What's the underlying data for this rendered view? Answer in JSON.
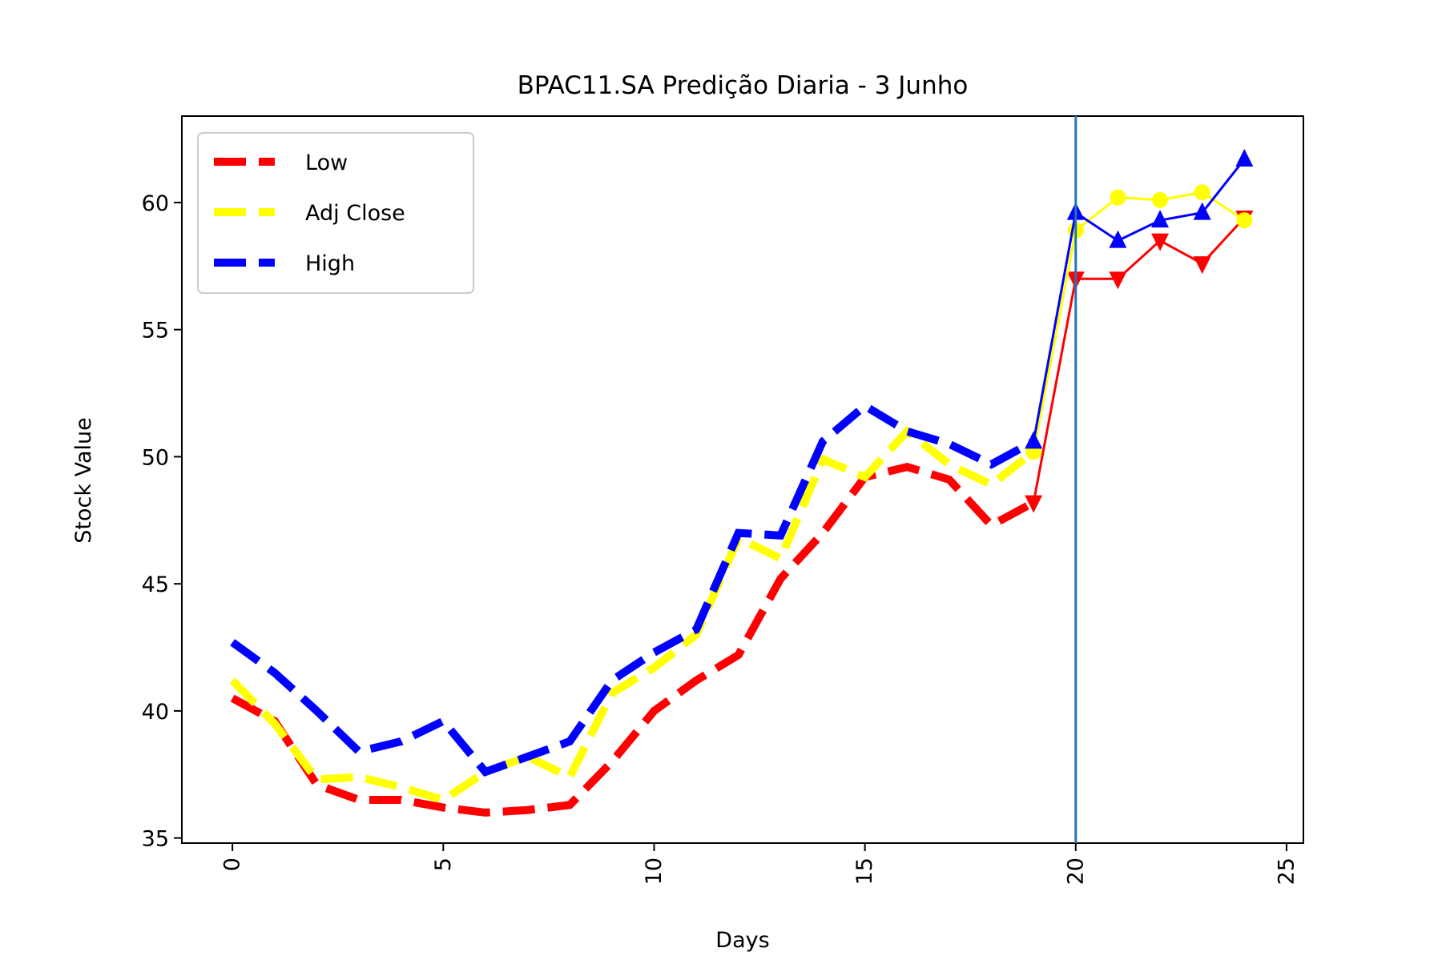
{
  "chart_data": {
    "type": "line",
    "title": "BPAC11.SA Predição Diaria - 3 Junho",
    "xlabel": "Days",
    "ylabel": "Stock Value",
    "xlim": [
      -1.2,
      25.4
    ],
    "ylim": [
      34.8,
      63.4
    ],
    "xticks": [
      0,
      5,
      10,
      15,
      20,
      25
    ],
    "yticks": [
      35,
      40,
      45,
      50,
      55,
      60
    ],
    "vline_x": 20,
    "vline_color": "#1f77b4",
    "legend_position": "upper-left",
    "grid": false,
    "series": [
      {
        "name": "Low",
        "color": "#ff0000",
        "x": [
          0,
          1,
          2,
          3,
          4,
          5,
          6,
          7,
          8,
          9,
          10,
          11,
          12,
          13,
          14,
          15,
          16,
          17,
          18,
          19
        ],
        "values": [
          40.5,
          39.6,
          37.1,
          36.5,
          36.5,
          36.2,
          36.0,
          36.1,
          36.3,
          38.0,
          40.0,
          41.2,
          42.2,
          45.2,
          47.0,
          49.2,
          49.6,
          49.1,
          47.3,
          48.2
        ],
        "pred_x": [
          19,
          20,
          21,
          22,
          23,
          24
        ],
        "pred_values": [
          48.2,
          57.0,
          57.0,
          58.5,
          57.6,
          59.4
        ],
        "marker": "triangle-down"
      },
      {
        "name": "Adj Close",
        "color": "#ffff00",
        "x": [
          0,
          1,
          2,
          3,
          4,
          5,
          6,
          7,
          8,
          9,
          10,
          11,
          12,
          13,
          14,
          15,
          16,
          17,
          18,
          19
        ],
        "values": [
          41.2,
          39.5,
          37.3,
          37.4,
          37.0,
          36.5,
          37.6,
          38.2,
          37.4,
          40.7,
          41.7,
          43.0,
          46.8,
          46.0,
          49.9,
          49.2,
          51.0,
          49.7,
          48.9,
          50.2
        ],
        "pred_x": [
          19,
          20,
          21,
          22,
          23,
          24
        ],
        "pred_values": [
          50.2,
          58.9,
          60.2,
          60.1,
          60.4,
          59.3
        ],
        "marker": "circle"
      },
      {
        "name": "High",
        "color": "#0000ff",
        "x": [
          0,
          1,
          2,
          3,
          4,
          5,
          6,
          7,
          8,
          9,
          10,
          11,
          12,
          13,
          14,
          15,
          16,
          17,
          18,
          19
        ],
        "values": [
          42.7,
          41.5,
          40.0,
          38.4,
          38.8,
          39.6,
          37.6,
          38.2,
          38.8,
          41.2,
          42.3,
          43.2,
          47.0,
          46.9,
          50.6,
          52.0,
          51.0,
          50.5,
          49.7,
          50.6
        ],
        "pred_x": [
          19,
          20,
          21,
          22,
          23,
          24
        ],
        "pred_values": [
          50.6,
          59.6,
          58.5,
          59.3,
          59.6,
          61.7
        ],
        "marker": "triangle-up"
      }
    ]
  }
}
